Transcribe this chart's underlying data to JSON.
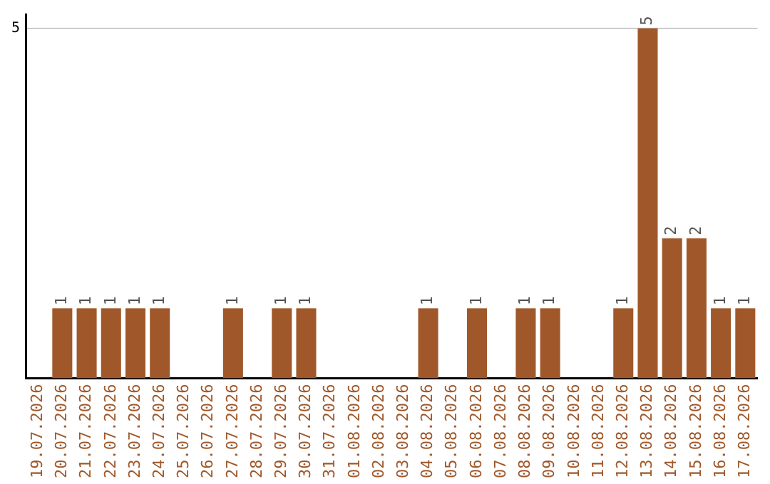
{
  "chart_data": {
    "type": "bar",
    "categories": [
      "19.07.2026",
      "20.07.2026",
      "21.07.2026",
      "22.07.2026",
      "23.07.2026",
      "24.07.2026",
      "25.07.2026",
      "26.07.2026",
      "27.07.2026",
      "28.07.2026",
      "29.07.2026",
      "30.07.2026",
      "31.07.2026",
      "01.08.2026",
      "02.08.2026",
      "03.08.2026",
      "04.08.2026",
      "05.08.2026",
      "06.08.2026",
      "07.08.2026",
      "08.08.2026",
      "09.08.2026",
      "10.08.2026",
      "11.08.2026",
      "12.08.2026",
      "13.08.2026",
      "14.08.2026",
      "15.08.2026",
      "16.08.2026",
      "17.08.2026"
    ],
    "values": [
      0,
      1,
      1,
      1,
      1,
      1,
      0,
      0,
      1,
      0,
      1,
      1,
      0,
      0,
      0,
      0,
      1,
      0,
      1,
      0,
      1,
      1,
      0,
      0,
      1,
      5,
      2,
      2,
      1,
      1
    ],
    "value_labels": [
      null,
      "1",
      "1",
      "1",
      "1",
      "1",
      null,
      null,
      "1",
      null,
      "1",
      "1",
      null,
      null,
      null,
      null,
      "1",
      null,
      "1",
      null,
      "1",
      "1",
      null,
      null,
      "1",
      "5",
      "2",
      "2",
      "1",
      "1"
    ],
    "color": "#a0582a",
    "ylim": [
      0,
      5.2
    ],
    "yticks": [
      5
    ],
    "grid": "y",
    "legend": false
  }
}
